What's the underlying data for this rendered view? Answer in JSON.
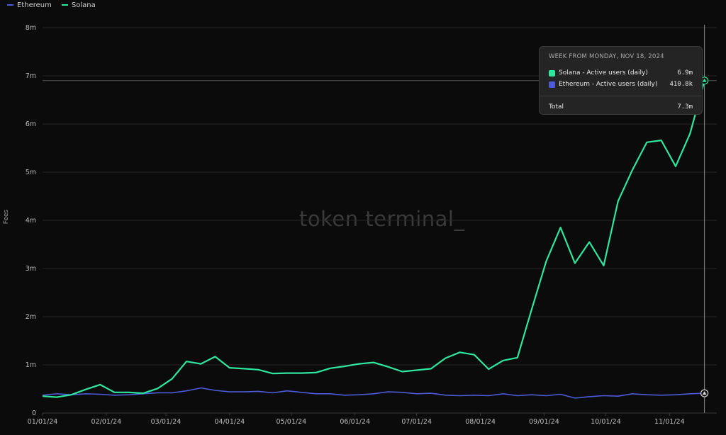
{
  "legend": [
    {
      "name": "Ethereum",
      "color": "#4d5bd9"
    },
    {
      "name": "Solana",
      "color": "#2ee6a0"
    }
  ],
  "watermark": "token terminal_",
  "tooltip": {
    "title": "WEEK FROM MONDAY, NOV 18, 2024",
    "rows": [
      {
        "label": "Solana - Active users (daily)",
        "value": "6.9m",
        "color": "#2ee6a0"
      },
      {
        "label": "Ethereum - Active users (daily)",
        "value": "410.8k",
        "color": "#4d5bd9"
      }
    ],
    "total_label": "Total",
    "total_value": "7.3m"
  },
  "chart_data": {
    "type": "line",
    "ylabel": "Fees",
    "xlabel": "",
    "ylim": [
      0,
      8000000
    ],
    "yticks": [
      {
        "value": 0,
        "label": "0"
      },
      {
        "value": 1000000,
        "label": "1m"
      },
      {
        "value": 2000000,
        "label": "2m"
      },
      {
        "value": 3000000,
        "label": "3m"
      },
      {
        "value": 4000000,
        "label": "4m"
      },
      {
        "value": 5000000,
        "label": "5m"
      },
      {
        "value": 6000000,
        "label": "6m"
      },
      {
        "value": 7000000,
        "label": "7m"
      },
      {
        "value": 8000000,
        "label": "8m"
      }
    ],
    "xticks": [
      {
        "date": "2024-01-01",
        "label": "01/01/24"
      },
      {
        "date": "2024-02-01",
        "label": "02/01/24"
      },
      {
        "date": "2024-03-01",
        "label": "03/01/24"
      },
      {
        "date": "2024-04-01",
        "label": "04/01/24"
      },
      {
        "date": "2024-05-01",
        "label": "05/01/24"
      },
      {
        "date": "2024-06-01",
        "label": "06/01/24"
      },
      {
        "date": "2024-07-01",
        "label": "07/01/24"
      },
      {
        "date": "2024-08-01",
        "label": "08/01/24"
      },
      {
        "date": "2024-09-01",
        "label": "09/01/24"
      },
      {
        "date": "2024-10-01",
        "label": "10/01/24"
      },
      {
        "date": "2024-11-01",
        "label": "11/01/24"
      }
    ],
    "xlim": [
      "2024-01-01",
      "2024-11-24"
    ],
    "x": [
      "2024-01-01",
      "2024-01-08",
      "2024-01-15",
      "2024-01-22",
      "2024-01-29",
      "2024-02-05",
      "2024-02-12",
      "2024-02-19",
      "2024-02-26",
      "2024-03-04",
      "2024-03-11",
      "2024-03-18",
      "2024-03-25",
      "2024-04-01",
      "2024-04-08",
      "2024-04-15",
      "2024-04-22",
      "2024-04-29",
      "2024-05-06",
      "2024-05-13",
      "2024-05-20",
      "2024-05-27",
      "2024-06-03",
      "2024-06-10",
      "2024-06-17",
      "2024-06-24",
      "2024-07-01",
      "2024-07-08",
      "2024-07-15",
      "2024-07-22",
      "2024-07-29",
      "2024-08-05",
      "2024-08-12",
      "2024-08-19",
      "2024-08-26",
      "2024-09-02",
      "2024-09-09",
      "2024-09-16",
      "2024-09-23",
      "2024-09-30",
      "2024-10-07",
      "2024-10-14",
      "2024-10-21",
      "2024-10-28",
      "2024-11-04",
      "2024-11-11",
      "2024-11-18"
    ],
    "series": [
      {
        "name": "Solana",
        "color": "#2ee6a0",
        "values": [
          350000,
          330000,
          380000,
          490000,
          590000,
          430000,
          430000,
          410000,
          510000,
          710000,
          1070000,
          1020000,
          1170000,
          940000,
          920000,
          900000,
          820000,
          830000,
          830000,
          840000,
          930000,
          970000,
          1020000,
          1050000,
          960000,
          860000,
          890000,
          920000,
          1140000,
          1260000,
          1210000,
          910000,
          1090000,
          1150000,
          2160000,
          3150000,
          3850000,
          3110000,
          3550000,
          3060000,
          4400000,
          5050000,
          5620000,
          5660000,
          5120000,
          5800000,
          6900000
        ]
      },
      {
        "name": "Ethereum",
        "color": "#4d5bd9",
        "values": [
          370000,
          400000,
          380000,
          400000,
          390000,
          370000,
          380000,
          400000,
          420000,
          420000,
          460000,
          520000,
          470000,
          440000,
          440000,
          450000,
          420000,
          460000,
          430000,
          400000,
          400000,
          370000,
          380000,
          400000,
          440000,
          430000,
          400000,
          410000,
          370000,
          360000,
          370000,
          360000,
          400000,
          360000,
          380000,
          360000,
          390000,
          310000,
          340000,
          360000,
          350000,
          400000,
          380000,
          370000,
          380000,
          400000,
          410800
        ]
      }
    ],
    "grid": true
  }
}
